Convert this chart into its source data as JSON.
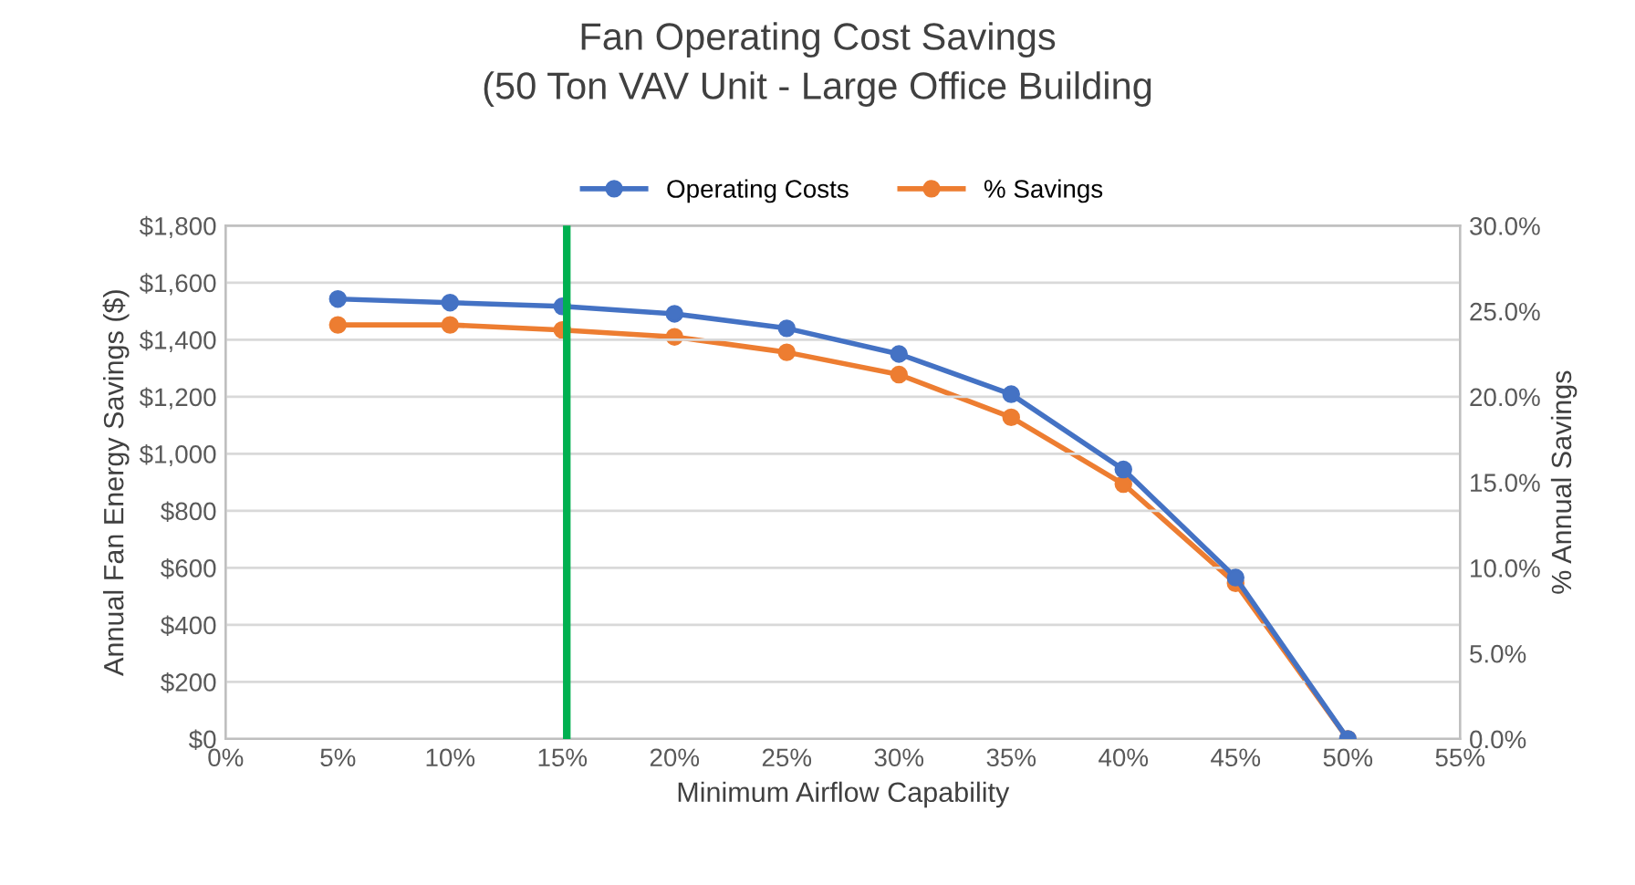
{
  "chart_data": {
    "type": "line",
    "title": "Fan Operating Cost Savings\n(50 Ton VAV Unit - Large Office Building",
    "xlabel": "Minimum Airflow Capability",
    "ylabel": "Annual Fan Energy Savings ($)",
    "y2label": "% Annual Savings",
    "x": [
      5,
      10,
      15,
      20,
      25,
      30,
      35,
      40,
      45,
      50
    ],
    "series": [
      {
        "name": "Operating Costs",
        "color": "#4472c4",
        "values": [
          1543,
          1530,
          1517,
          1491,
          1440,
          1350,
          1209,
          945,
          566,
          0
        ]
      },
      {
        "name": "% Savings",
        "color": "#ed7d31",
        "axis": "y2",
        "values": [
          24.2,
          24.2,
          23.9,
          23.5,
          22.6,
          21.3,
          18.8,
          14.9,
          9.1,
          0
        ]
      }
    ],
    "xlim": [
      0,
      55
    ],
    "xticks": [
      {
        "value": 0,
        "label": "0%"
      },
      {
        "value": 5,
        "label": "5%"
      },
      {
        "value": 10,
        "label": "10%"
      },
      {
        "value": 15,
        "label": "15%"
      },
      {
        "value": 20,
        "label": "20%"
      },
      {
        "value": 25,
        "label": "25%"
      },
      {
        "value": 30,
        "label": "30%"
      },
      {
        "value": 35,
        "label": "35%"
      },
      {
        "value": 40,
        "label": "40%"
      },
      {
        "value": 45,
        "label": "45%"
      },
      {
        "value": 50,
        "label": "50%"
      },
      {
        "value": 55,
        "label": "55%"
      }
    ],
    "ylim": [
      0,
      1800
    ],
    "yticks": [
      {
        "value": 0,
        "label": "$0"
      },
      {
        "value": 200,
        "label": "$200"
      },
      {
        "value": 400,
        "label": "$400"
      },
      {
        "value": 600,
        "label": "$600"
      },
      {
        "value": 800,
        "label": "$800"
      },
      {
        "value": 1000,
        "label": "$1,000"
      },
      {
        "value": 1200,
        "label": "$1,200"
      },
      {
        "value": 1400,
        "label": "$1,400"
      },
      {
        "value": 1600,
        "label": "$1,600"
      },
      {
        "value": 1800,
        "label": "$1,800"
      }
    ],
    "y2lim": [
      0,
      30
    ],
    "y2ticks": [
      {
        "value": 0,
        "label": "0.0%"
      },
      {
        "value": 5,
        "label": "5.0%"
      },
      {
        "value": 10,
        "label": "10.0%"
      },
      {
        "value": 15,
        "label": "15.0%"
      },
      {
        "value": 20,
        "label": "20.0%"
      },
      {
        "value": 25,
        "label": "25.0%"
      },
      {
        "value": 30,
        "label": "30.0%"
      }
    ],
    "ref_lines": [
      {
        "axis": "x",
        "value": 15.2,
        "color": "#00b050"
      }
    ],
    "grid": "y",
    "legend": "top",
    "marker": "circle",
    "line_style": "solid"
  }
}
